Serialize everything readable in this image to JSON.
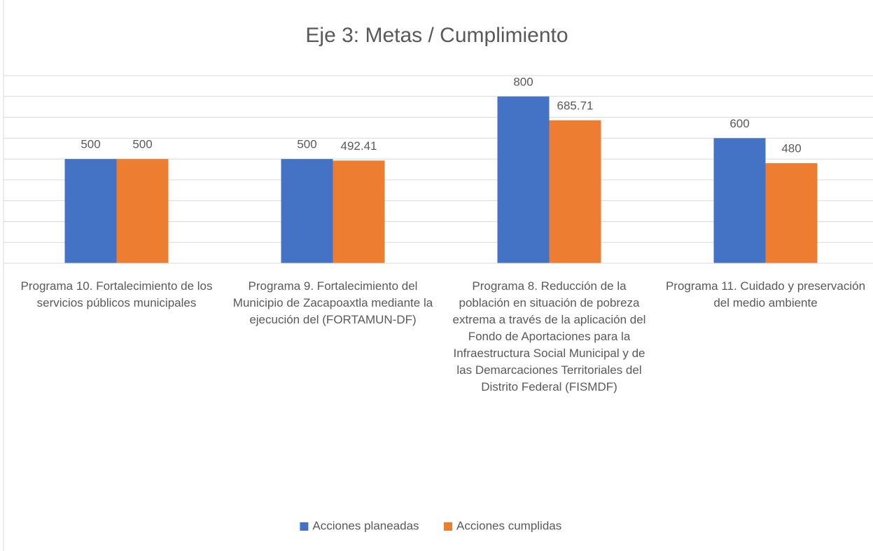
{
  "chart_data": {
    "type": "bar",
    "title": "Eje 3: Metas / Cumplimiento",
    "categories": [
      "Programa 10. Fortalecimiento de los servicios públicos municipales",
      "Programa 9. Fortalecimiento del Municipio de Zacapoaxtla mediante la ejecución del (FORTAMUN-DF)",
      "Programa 8. Reducción de la población en situación de pobreza extrema a través de la aplicación del Fondo de Aportaciones para la Infraestructura Social Municipal y de las Demarcaciones Territoriales del Distrito Federal (FISMDF)",
      "Programa 11. Cuidado y preservación del medio ambiente"
    ],
    "series": [
      {
        "name": "Acciones planeadas",
        "color": "#4472c4",
        "values": [
          500,
          500,
          800,
          600
        ]
      },
      {
        "name": "Acciones cumplidas",
        "color": "#ed7d31",
        "values": [
          500,
          492.41,
          685.71,
          480
        ]
      }
    ],
    "ylim": [
      0,
      900
    ],
    "yticks": [
      0,
      100,
      200,
      300,
      400,
      500,
      600,
      700,
      800,
      900
    ],
    "grid": true,
    "legend": "bottom"
  }
}
